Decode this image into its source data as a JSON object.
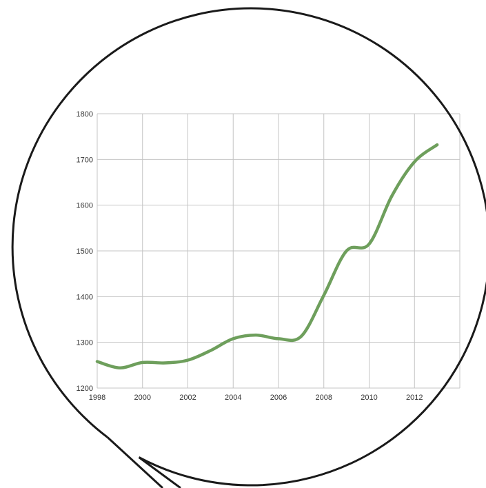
{
  "chart_data": {
    "type": "line",
    "title": "",
    "xlabel": "",
    "ylabel": "",
    "x": [
      1998,
      1999,
      2000,
      2001,
      2002,
      2003,
      2004,
      2005,
      2006,
      2007,
      2008,
      2009,
      2010,
      2011,
      2012,
      2013
    ],
    "series": [
      {
        "values": [
          1258,
          1244,
          1256,
          1255,
          1261,
          1282,
          1308,
          1316,
          1308,
          1313,
          1403,
          1500,
          1515,
          1620,
          1695,
          1732
        ]
      }
    ],
    "xlim": [
      1998,
      2014
    ],
    "ylim": [
      1200,
      1800
    ],
    "xticks": [
      1998,
      2000,
      2002,
      2004,
      2006,
      2008,
      2010,
      2012
    ],
    "yticks": [
      1200,
      1300,
      1400,
      1500,
      1600,
      1700,
      1800
    ],
    "xtick_labels": [
      "1998",
      "2000",
      "2002",
      "2004",
      "2006",
      "2008",
      "2010",
      "2012"
    ],
    "ytick_labels": [
      "1200",
      "1300",
      "1400",
      "1500",
      "1600",
      "1700",
      "1800"
    ],
    "grid": true,
    "legend": "none",
    "colors": {
      "line": "#6e9f5c",
      "grid": "#c4c4c4",
      "frame": "#1a1a1a"
    }
  }
}
